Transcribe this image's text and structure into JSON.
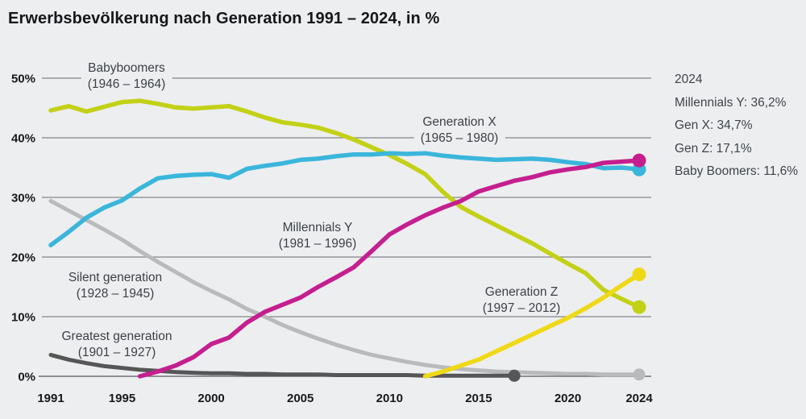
{
  "title": "Erwerbsbevölkerung nach Generation 1991 – 2024, in %",
  "legend": {
    "title": "2024",
    "entries": [
      "Millennials Y: 36,2%",
      "Gen X: 34,7%",
      "Gen Z: 17,1%",
      "Baby Boomers: 11,6%"
    ]
  },
  "colors": {
    "background": "#edeef0",
    "title_text": "#15171a",
    "label_text": "#3c4147",
    "legend_text": "#3e4449",
    "gridline": "#93959a",
    "axis_zero_line": "#56585c",
    "babyboomers": "#c3d116",
    "generation_x": "#3bb6db",
    "millennials_y": "#c51f8f",
    "generation_z": "#efd915",
    "silent_generation": "#b9babc",
    "greatest_generation": "#565656"
  },
  "chart_data": {
    "type": "line",
    "title": "Erwerbsbevölkerung nach Generation 1991 – 2024, in %",
    "xlabel": "",
    "ylabel": "in %",
    "xlim": [
      1991,
      2024
    ],
    "ylim": [
      0,
      52
    ],
    "grid": "horizontal",
    "legend_position": "right",
    "x": [
      1991,
      1992,
      1993,
      1994,
      1995,
      1996,
      1997,
      1998,
      1999,
      2000,
      2001,
      2002,
      2003,
      2004,
      2005,
      2006,
      2007,
      2008,
      2009,
      2010,
      2011,
      2012,
      2013,
      2014,
      2015,
      2016,
      2017,
      2018,
      2019,
      2020,
      2021,
      2022,
      2023,
      2024
    ],
    "xticks": [
      "1991",
      "1995",
      "2000",
      "2005",
      "2010",
      "2015",
      "2020",
      "2024"
    ],
    "xtick_years": [
      1991,
      1995,
      2000,
      2005,
      2010,
      2015,
      2020,
      2024
    ],
    "yticks": [
      {
        "value": 50,
        "label": "50%"
      },
      {
        "value": 40,
        "label": "40%"
      },
      {
        "value": 30,
        "label": "30%"
      },
      {
        "value": 20,
        "label": "20%"
      },
      {
        "value": 10,
        "label": "10%"
      },
      {
        "value": 0,
        "label": "0%"
      }
    ],
    "series": [
      {
        "name": "silent-generation",
        "label": "Silent generation (1928 – 1945)",
        "color": "#b9babc",
        "line_width": 5,
        "dot_radius": 7.5,
        "values": [
          29.4,
          27.8,
          26.2,
          24.6,
          22.9,
          21.0,
          19.2,
          17.5,
          15.8,
          14.3,
          12.9,
          11.3,
          10.0,
          8.6,
          7.4,
          6.3,
          5.3,
          4.4,
          3.6,
          3.0,
          2.4,
          1.9,
          1.5,
          1.2,
          1.0,
          0.8,
          0.7,
          0.6,
          0.5,
          0.4,
          0.4,
          0.3,
          0.3,
          0.3
        ]
      },
      {
        "name": "greatest-generation",
        "label": "Greatest generation (1901 – 1927)",
        "color": "#565656",
        "line_width": 5,
        "dot_radius": 7.5,
        "values": [
          3.6,
          2.8,
          2.2,
          1.7,
          1.4,
          1.1,
          0.9,
          0.7,
          0.6,
          0.5,
          0.5,
          0.4,
          0.4,
          0.3,
          0.3,
          0.3,
          0.2,
          0.2,
          0.2,
          0.2,
          0.2,
          0.1,
          0.1,
          0.1,
          0.1,
          0.1,
          0.1,
          null,
          null,
          null,
          null,
          null,
          null,
          null
        ]
      },
      {
        "name": "babyboomers",
        "label": "Babyboomers (1946 – 1964)",
        "color": "#c3d116",
        "line_width": 5.5,
        "dot_radius": 8.5,
        "values": [
          44.6,
          45.3,
          44.4,
          45.2,
          46.0,
          46.2,
          45.7,
          45.1,
          44.9,
          45.1,
          45.3,
          44.4,
          43.4,
          42.6,
          42.2,
          41.7,
          40.8,
          39.7,
          38.4,
          37.1,
          35.6,
          33.9,
          30.9,
          28.4,
          26.8,
          25.3,
          23.8,
          22.3,
          20.6,
          18.9,
          17.3,
          14.5,
          13.0,
          11.6
        ]
      },
      {
        "name": "generation-x",
        "label": "Generation X (1965 – 1980)",
        "color": "#3bb6db",
        "line_width": 5.5,
        "dot_radius": 8.5,
        "values": [
          22.0,
          24.2,
          26.6,
          28.3,
          29.5,
          31.5,
          33.2,
          33.6,
          33.8,
          33.9,
          33.3,
          34.8,
          35.3,
          35.7,
          36.3,
          36.5,
          36.9,
          37.2,
          37.2,
          37.4,
          37.3,
          37.4,
          37.0,
          36.7,
          36.5,
          36.3,
          36.4,
          36.5,
          36.3,
          35.9,
          35.6,
          34.9,
          35.0,
          34.7
        ]
      },
      {
        "name": "generation-z",
        "label": "Generation Z (1997 – 2012)",
        "color": "#efd915",
        "line_width": 5.5,
        "dot_radius": 8.5,
        "values": [
          null,
          null,
          null,
          null,
          null,
          null,
          null,
          null,
          null,
          null,
          null,
          null,
          null,
          null,
          null,
          null,
          null,
          null,
          null,
          null,
          null,
          0.0,
          0.8,
          1.8,
          2.8,
          4.2,
          5.6,
          7.0,
          8.4,
          9.8,
          11.4,
          13.2,
          15.2,
          17.1
        ]
      },
      {
        "name": "millennials-y",
        "label": "Millennials Y (1981 – 1996)",
        "color": "#c51f8f",
        "line_width": 5.5,
        "dot_radius": 8.5,
        "values": [
          null,
          null,
          null,
          null,
          null,
          0.0,
          0.8,
          1.8,
          3.2,
          5.4,
          6.5,
          9.0,
          10.8,
          12.0,
          13.2,
          15.0,
          16.6,
          18.3,
          21.0,
          23.8,
          25.5,
          27.0,
          28.3,
          29.4,
          31.0,
          31.9,
          32.8,
          33.4,
          34.2,
          34.7,
          35.1,
          35.8,
          36.0,
          36.2
        ]
      }
    ],
    "annotations": [
      {
        "line1": "Babyboomers",
        "line2": "(1946 – 1964)"
      },
      {
        "line1": "Generation X",
        "line2": "(1965 – 1980)"
      },
      {
        "line1": "Millennials Y",
        "line2": "(1981 – 1996)"
      },
      {
        "line1": "Silent generation",
        "line2": "(1928 – 1945)"
      },
      {
        "line1": "Generation Z",
        "line2": "(1997 – 2012)"
      },
      {
        "line1": "Greatest generation",
        "line2": "(1901 – 1927)"
      }
    ]
  }
}
